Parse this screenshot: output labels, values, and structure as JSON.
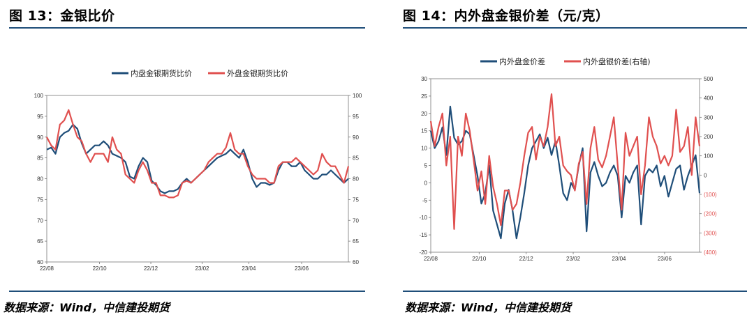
{
  "left": {
    "title": "图 13：金银比价",
    "source": "数据来源：Wind，中信建投期货"
  },
  "right": {
    "title": "图 14：内外盘金银价差（元/克）",
    "source": "数据来源：Wind，中信建投期货"
  },
  "colors": {
    "inner": "#1f4e79",
    "outer": "#e0504f",
    "rule": "#1f4e79"
  },
  "chart_data": [
    {
      "type": "line",
      "title": "",
      "x_ticks": [
        "22/08",
        "22/10",
        "22/12",
        "23/02",
        "23/04",
        "23/06"
      ],
      "ylim": [
        60,
        100
      ],
      "y_ticks": [
        60,
        65,
        70,
        75,
        80,
        85,
        90,
        95,
        100
      ],
      "y2lim": [
        60,
        100
      ],
      "y2_ticks": [
        60,
        65,
        70,
        75,
        80,
        85,
        90,
        95,
        100
      ],
      "legend_position": "top",
      "series": [
        {
          "name": "内盘金银期货比价",
          "axis": "left",
          "values": [
            87,
            87.5,
            86,
            90,
            91,
            91.5,
            93,
            92,
            88.5,
            86,
            87,
            88,
            88,
            89,
            88,
            86,
            85.5,
            85,
            84,
            80.5,
            80,
            83,
            85,
            84,
            79.5,
            78.5,
            77,
            76.5,
            77,
            77,
            77.5,
            79,
            80,
            79,
            80,
            81,
            82,
            83,
            84,
            85,
            85.5,
            86,
            87,
            86,
            85,
            87,
            84,
            80,
            78,
            79,
            79,
            78.5,
            79,
            82,
            84,
            84,
            83,
            83,
            84,
            82,
            81,
            80,
            80,
            81,
            81,
            82,
            81,
            80,
            79,
            80
          ]
        },
        {
          "name": "外盘金银期货比价",
          "axis": "left",
          "values": [
            90,
            88,
            87,
            93,
            94,
            96.5,
            93,
            90,
            89,
            86,
            84,
            86,
            86,
            86,
            84,
            90,
            87,
            86,
            81,
            80,
            79,
            82,
            84,
            82,
            79,
            79,
            76,
            76,
            75.5,
            75.5,
            76,
            79,
            79.5,
            79,
            80,
            81,
            82,
            84,
            85,
            86,
            86,
            87.5,
            91,
            87,
            86,
            86,
            83,
            81,
            80,
            80,
            80,
            79,
            79,
            83,
            84,
            84,
            84,
            85,
            84,
            83,
            82,
            81,
            82,
            86,
            84,
            83,
            83,
            81,
            79,
            83
          ]
        }
      ]
    },
    {
      "type": "line",
      "title": "",
      "x_ticks": [
        "22/08",
        "22/10",
        "22/12",
        "23/02",
        "23/04",
        "23/06"
      ],
      "ylim": [
        -20,
        30
      ],
      "y_ticks": [
        -20,
        -15,
        -10,
        -5,
        0,
        5,
        10,
        15,
        20,
        25,
        30
      ],
      "y2lim": [
        -400,
        500
      ],
      "y2_ticks": [
        "(400)",
        "(300)",
        "(200)",
        "(100)",
        "0",
        "100",
        "200",
        "300",
        "400",
        "500"
      ],
      "legend_position": "top",
      "series": [
        {
          "name": "内外盘金价差",
          "axis": "left",
          "values": [
            15,
            10,
            12,
            16,
            8,
            22,
            13,
            11,
            12,
            15,
            14,
            8,
            2,
            -6,
            -3,
            5,
            -8,
            -12,
            -16,
            -6,
            -2,
            -8,
            -16,
            -10,
            -3,
            5,
            10,
            12,
            14,
            10,
            13,
            8,
            12,
            5,
            -3,
            -5,
            0,
            -2,
            5,
            10,
            -14,
            3,
            6,
            2,
            -1,
            0,
            3,
            5,
            2,
            -10,
            2,
            0,
            3,
            5,
            -12,
            2,
            4,
            3,
            5,
            -1,
            2,
            -4,
            0,
            4,
            5,
            -2,
            2,
            5,
            8,
            -3
          ]
        },
        {
          "name": "内外盘银价差(右轴)",
          "axis": "right",
          "values": [
            280,
            150,
            250,
            320,
            50,
            200,
            -280,
            200,
            100,
            320,
            230,
            80,
            -80,
            20,
            -150,
            100,
            -60,
            -150,
            -260,
            -80,
            -80,
            -180,
            -150,
            -40,
            100,
            220,
            250,
            80,
            200,
            150,
            250,
            420,
            150,
            200,
            50,
            20,
            0,
            -80,
            60,
            120,
            -150,
            140,
            250,
            80,
            40,
            100,
            200,
            300,
            50,
            -180,
            220,
            100,
            150,
            200,
            -100,
            50,
            300,
            200,
            150,
            60,
            100,
            50,
            100,
            340,
            120,
            150,
            250,
            0,
            300,
            150
          ]
        }
      ]
    }
  ]
}
